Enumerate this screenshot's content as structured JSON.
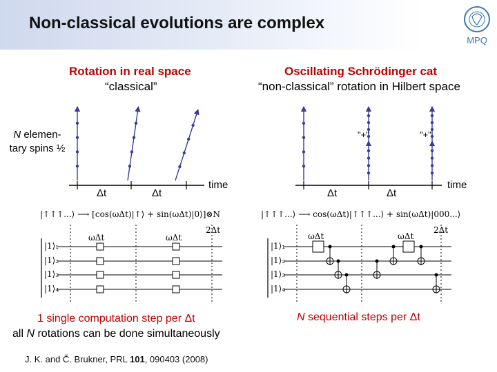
{
  "title": "Non-classical evolutions are complex",
  "left": {
    "heading": "Rotation in real space",
    "subheading": "“classical”",
    "spins_label_italic": "N",
    "spins_label_rest": " elemen- tary spins ½",
    "dt1": "Δt",
    "dt2": "Δt",
    "time": "time",
    "formula": "|↑↑↑...⟩ ⟶ [cos(ωΔt)|↑⟩ + sin(ωΔt)|0⟩]⊗N",
    "marker_2dt": "2Δt",
    "gate1": "ωΔt",
    "gate2": "ωΔt",
    "qubits": [
      "|1⟩₁",
      "|1⟩₂",
      "|1⟩₃",
      "|1⟩₄"
    ],
    "summary_line1": "1 single computation step per Δt",
    "summary_line2_pre": "all ",
    "summary_line2_n": "N",
    "summary_line2_post": " rotations can be done simultaneously"
  },
  "right": {
    "heading": "Oscillating Schrödinger cat",
    "subheading": "“non-classical” rotation in Hilbert space",
    "plus1": "\"+\"",
    "plus2": "\"+\"",
    "dt1": "Δt",
    "dt2": "Δt",
    "time": "time",
    "formula": "|↑↑↑...⟩ ⟶ cos(ωΔt)|↑↑↑...⟩ + sin(ωΔt)|000...⟩",
    "marker_2dt": "2Δt",
    "gate1": "ωΔt",
    "gate2": "ωΔt",
    "qubits": [
      "|1⟩₁",
      "|1⟩₂",
      "|1⟩₃",
      "|1⟩₄"
    ],
    "summary_n": "N",
    "summary_rest": " sequential steps per Δt"
  },
  "citation_pre": "J. K. and Č. Brukner, PRL ",
  "citation_vol": "101",
  "citation_post": ", 090403 (2008)",
  "logo_text": "MPQ",
  "colors": {
    "spin_arrow": "#3a3a9a",
    "heading_red": "#c00000",
    "header_band": "#cfd9ee"
  }
}
